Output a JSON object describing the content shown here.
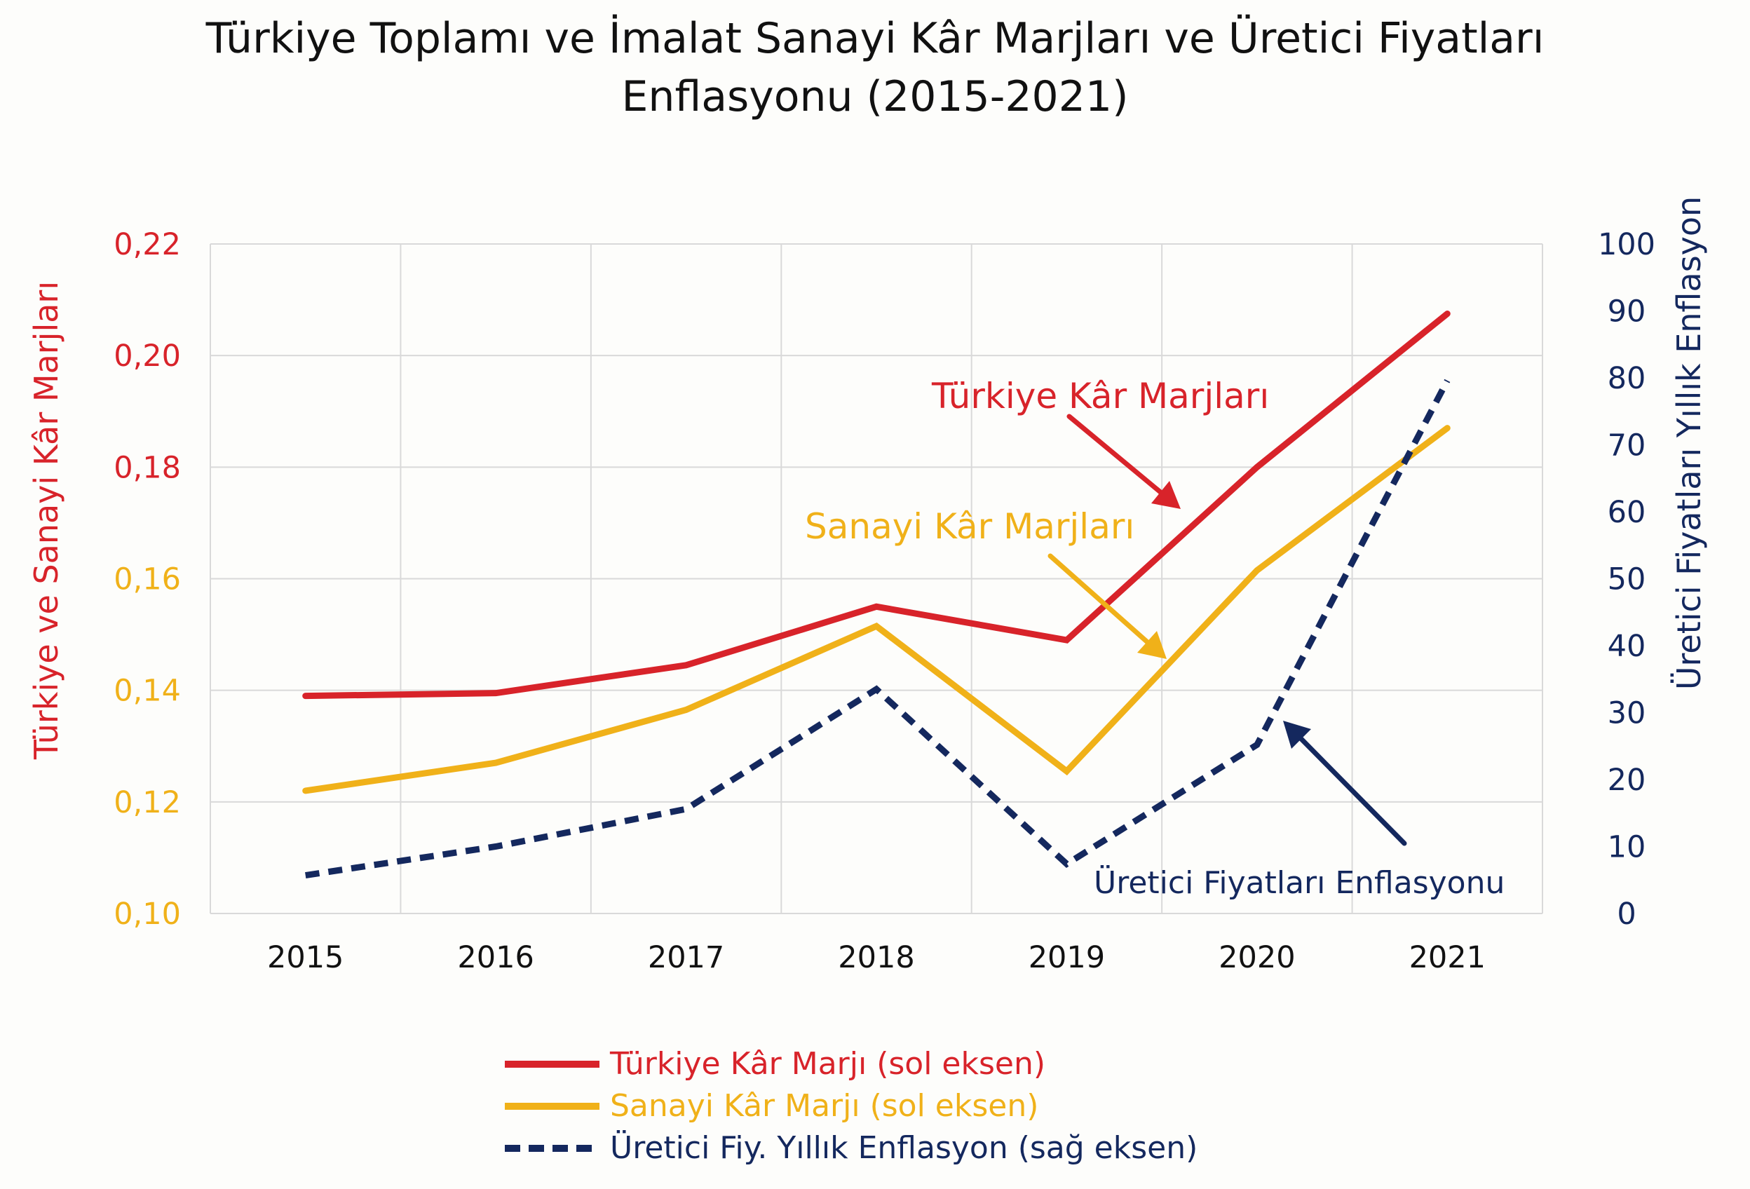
{
  "chart_data": {
    "type": "line",
    "title": [
      "Türkiye Toplamı ve İmalat Sanayi Kâr Marjları ve Üretici Fiyatları",
      "Enflasyonu (2015-2021)"
    ],
    "categories": [
      "2015",
      "2016",
      "2017",
      "2018",
      "2019",
      "2020",
      "2021"
    ],
    "ylabel_left": "Türkiye ve Sanayi Kâr Marjları",
    "ylabel_right": "Üretici Fiyatları Yıllık Enflasyon",
    "ylim_left": [
      0.1,
      0.22
    ],
    "ylim_right": [
      0,
      100
    ],
    "yticks_left": [
      "0,10",
      "0,12",
      "0,14",
      "0,16",
      "0,18",
      "0,20",
      "0,22"
    ],
    "ytick_colors_left": [
      "#f0b119",
      "#f0b119",
      "#f0b119",
      "#f0b119",
      "#d8232a",
      "#d8232a",
      "#d8232a"
    ],
    "yticks_right": [
      "0",
      "10",
      "20",
      "30",
      "40",
      "50",
      "60",
      "70",
      "80",
      "90",
      "100"
    ],
    "grid": true,
    "series": [
      {
        "name": "Türkiye Kâr Marjı (sol eksen)",
        "axis": "left",
        "color": "#d8232a",
        "style": "solid",
        "values": [
          0.139,
          0.1395,
          0.1445,
          0.155,
          0.149,
          0.18,
          0.2075
        ]
      },
      {
        "name": "Sanayi Kâr Marjı (sol eksen)",
        "axis": "left",
        "color": "#f0b119",
        "style": "solid",
        "values": [
          0.122,
          0.127,
          0.1365,
          0.1515,
          0.1255,
          0.1615,
          0.187
        ]
      },
      {
        "name": "Üretici Fiy. Yıllık Enflasyon (sağ eksen)",
        "axis": "right",
        "color": "#14285e",
        "style": "dashed",
        "values": [
          5.7,
          10.0,
          15.6,
          33.5,
          7.4,
          25.2,
          79.6
        ]
      }
    ],
    "annotations": [
      {
        "text": "Türkiye Kâr Marjları",
        "color": "#d8232a"
      },
      {
        "text": "Sanayi Kâr Marjları",
        "color": "#f0b119"
      },
      {
        "text": "Üretici Fiyatları Enflasyonu",
        "color": "#14285e"
      }
    ],
    "legend_position": "bottom-center"
  }
}
